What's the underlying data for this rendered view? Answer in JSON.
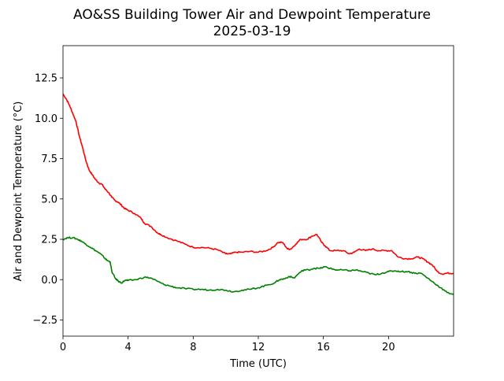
{
  "chart_data": {
    "type": "line",
    "title": "AO&SS Building Tower Air and Dewpoint Temperature",
    "subtitle": "2025-03-19",
    "xlabel": "Time (UTC)",
    "ylabel": "Air and Dewpoint Temperature (°C)",
    "xlim": [
      0,
      24
    ],
    "ylim": [
      -3.5,
      14.5
    ],
    "xticks": [
      0,
      4,
      8,
      12,
      16,
      20
    ],
    "xtick_labels": [
      "0",
      "4",
      "8",
      "12",
      "16",
      "20"
    ],
    "yticks": [
      -2.5,
      0.0,
      2.5,
      5.0,
      7.5,
      10.0,
      12.5
    ],
    "ytick_labels": [
      "−2.5",
      "0.0",
      "2.5",
      "5.0",
      "7.5",
      "10.0",
      "12.5"
    ],
    "grid": false,
    "legend": "none",
    "series": [
      {
        "color": "#ff0000",
        "x": [
          0.0,
          0.2,
          0.4,
          0.6,
          0.8,
          1.0,
          1.2,
          1.4,
          1.6,
          1.8,
          2.0,
          2.2,
          2.4,
          2.6,
          2.8,
          3.0,
          3.2,
          3.4,
          3.6,
          3.8,
          4.0,
          4.4,
          4.8,
          5.0,
          5.4,
          5.8,
          6.0,
          6.4,
          7.0,
          7.5,
          8.0,
          8.5,
          9.0,
          9.5,
          10.0,
          10.3,
          10.6,
          11.0,
          11.5,
          12.0,
          12.5,
          12.9,
          13.2,
          13.5,
          13.8,
          14.0,
          14.3,
          14.6,
          15.0,
          15.3,
          15.6,
          15.9,
          16.1,
          16.4,
          16.8,
          17.2,
          17.6,
          17.9,
          18.2,
          18.6,
          19.0,
          19.4,
          19.8,
          20.2,
          20.6,
          21.0,
          21.4,
          21.8,
          22.1,
          22.4,
          22.7,
          23.0,
          23.3,
          23.6,
          24.0
        ],
        "values": [
          11.5,
          11.2,
          10.8,
          10.3,
          9.8,
          8.9,
          8.2,
          7.4,
          6.8,
          6.5,
          6.2,
          6.0,
          5.9,
          5.6,
          5.4,
          5.1,
          4.9,
          4.8,
          4.6,
          4.4,
          4.3,
          4.1,
          3.8,
          3.5,
          3.3,
          2.9,
          2.8,
          2.6,
          2.4,
          2.2,
          2.0,
          2.0,
          1.95,
          1.85,
          1.6,
          1.6,
          1.7,
          1.7,
          1.75,
          1.7,
          1.8,
          2.0,
          2.3,
          2.3,
          1.9,
          1.9,
          2.2,
          2.5,
          2.5,
          2.7,
          2.8,
          2.3,
          2.1,
          1.8,
          1.8,
          1.8,
          1.6,
          1.7,
          1.9,
          1.8,
          1.9,
          1.8,
          1.8,
          1.8,
          1.4,
          1.3,
          1.3,
          1.4,
          1.3,
          1.1,
          0.9,
          0.5,
          0.35,
          0.4,
          0.4
        ]
      },
      {
        "color": "#008000",
        "x": [
          0.0,
          0.3,
          0.6,
          0.9,
          1.1,
          1.4,
          1.7,
          2.0,
          2.3,
          2.5,
          2.7,
          2.9,
          3.0,
          3.2,
          3.4,
          3.6,
          3.8,
          4.0,
          4.5,
          5.0,
          5.4,
          5.8,
          6.2,
          6.6,
          7.0,
          7.5,
          8.0,
          8.5,
          9.0,
          9.5,
          10.0,
          10.5,
          11.0,
          11.5,
          12.0,
          12.5,
          13.0,
          13.3,
          13.6,
          13.9,
          14.2,
          14.5,
          14.8,
          15.1,
          15.4,
          15.8,
          16.1,
          16.4,
          16.8,
          17.2,
          17.6,
          18.0,
          18.4,
          18.8,
          19.2,
          19.6,
          20.0,
          20.4,
          20.8,
          21.2,
          21.6,
          22.0,
          22.4,
          22.8,
          23.2,
          23.6,
          24.0
        ],
        "values": [
          2.5,
          2.6,
          2.6,
          2.5,
          2.4,
          2.2,
          2.0,
          1.8,
          1.6,
          1.4,
          1.2,
          1.1,
          0.5,
          0.1,
          -0.1,
          -0.2,
          -0.05,
          -0.05,
          0.0,
          0.15,
          0.1,
          -0.1,
          -0.3,
          -0.4,
          -0.5,
          -0.55,
          -0.6,
          -0.6,
          -0.65,
          -0.6,
          -0.65,
          -0.75,
          -0.65,
          -0.6,
          -0.5,
          -0.35,
          -0.2,
          0.0,
          0.05,
          0.2,
          0.1,
          0.4,
          0.6,
          0.6,
          0.7,
          0.7,
          0.8,
          0.7,
          0.6,
          0.6,
          0.55,
          0.6,
          0.5,
          0.4,
          0.3,
          0.4,
          0.5,
          0.55,
          0.5,
          0.5,
          0.4,
          0.4,
          0.1,
          -0.2,
          -0.5,
          -0.8,
          -0.9
        ]
      }
    ]
  }
}
